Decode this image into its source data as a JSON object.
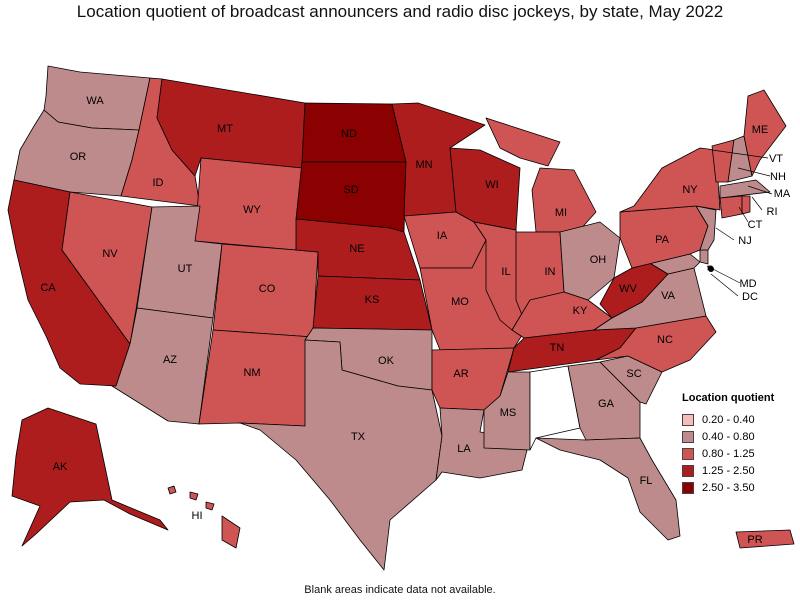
{
  "title": "Location quotient of broadcast announcers and radio disc jockeys, by state, May 2022",
  "footnote": "Blank areas indicate data not available.",
  "legend": {
    "title": "Location quotient",
    "items": [
      {
        "label": "0.20 - 0.40",
        "color": "#f6bcbc"
      },
      {
        "label": "0.40 - 0.80",
        "color": "#bd8b8b"
      },
      {
        "label": "0.80 - 1.25",
        "color": "#cf5454"
      },
      {
        "label": "1.25 - 2.50",
        "color": "#ae1d1d"
      },
      {
        "label": "2.50 - 3.50",
        "color": "#8b0000"
      }
    ]
  },
  "states": {
    "WA": {
      "label": "WA",
      "bin": 1
    },
    "OR": {
      "label": "OR",
      "bin": 1
    },
    "CA": {
      "label": "CA",
      "bin": 3
    },
    "NV": {
      "label": "NV",
      "bin": 2
    },
    "ID": {
      "label": "ID",
      "bin": 2
    },
    "MT": {
      "label": "MT",
      "bin": 3
    },
    "WY": {
      "label": "WY",
      "bin": 2
    },
    "UT": {
      "label": "UT",
      "bin": 1
    },
    "AZ": {
      "label": "AZ",
      "bin": 1
    },
    "CO": {
      "label": "CO",
      "bin": 2
    },
    "NM": {
      "label": "NM",
      "bin": 2
    },
    "ND": {
      "label": "ND",
      "bin": 4
    },
    "SD": {
      "label": "SD",
      "bin": 4
    },
    "NE": {
      "label": "NE",
      "bin": 3
    },
    "KS": {
      "label": "KS",
      "bin": 3
    },
    "OK": {
      "label": "OK",
      "bin": 1
    },
    "TX": {
      "label": "TX",
      "bin": 1
    },
    "MN": {
      "label": "MN",
      "bin": 3
    },
    "IA": {
      "label": "IA",
      "bin": 2
    },
    "MO": {
      "label": "MO",
      "bin": 2
    },
    "AR": {
      "label": "AR",
      "bin": 2
    },
    "LA": {
      "label": "LA",
      "bin": 1
    },
    "WI": {
      "label": "WI",
      "bin": 3
    },
    "IL": {
      "label": "IL",
      "bin": 2
    },
    "MI": {
      "label": "MI",
      "bin": 2
    },
    "IN": {
      "label": "IN",
      "bin": 2
    },
    "OH": {
      "label": "OH",
      "bin": 1
    },
    "KY": {
      "label": "KY",
      "bin": 2
    },
    "TN": {
      "label": "TN",
      "bin": 3
    },
    "MS": {
      "label": "MS",
      "bin": 1
    },
    "AL": {
      "label": "",
      "bin": null
    },
    "GA": {
      "label": "GA",
      "bin": 1
    },
    "FL": {
      "label": "FL",
      "bin": 1
    },
    "SC": {
      "label": "SC",
      "bin": 1
    },
    "NC": {
      "label": "NC",
      "bin": 2
    },
    "VA": {
      "label": "VA",
      "bin": 1
    },
    "WV": {
      "label": "WV",
      "bin": 3
    },
    "MD": {
      "label": "MD",
      "bin": 1
    },
    "DC": {
      "label": "DC",
      "bin": 1
    },
    "DE": {
      "label": "",
      "bin": 1
    },
    "PA": {
      "label": "PA",
      "bin": 2
    },
    "NJ": {
      "label": "NJ",
      "bin": 1
    },
    "NY": {
      "label": "NY",
      "bin": 2
    },
    "CT": {
      "label": "CT",
      "bin": 2
    },
    "RI": {
      "label": "RI",
      "bin": 2
    },
    "MA": {
      "label": "MA",
      "bin": 1
    },
    "VT": {
      "label": "VT",
      "bin": 2
    },
    "NH": {
      "label": "NH",
      "bin": 1
    },
    "ME": {
      "label": "ME",
      "bin": 2
    },
    "AK": {
      "label": "AK",
      "bin": 3
    },
    "HI": {
      "label": "HI",
      "bin": 2
    },
    "PR": {
      "label": "PR",
      "bin": 2
    }
  }
}
